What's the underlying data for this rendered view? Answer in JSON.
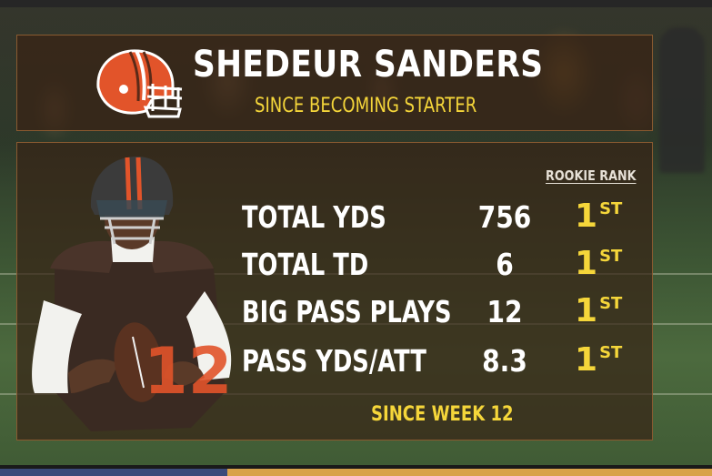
{
  "header": {
    "player_name": "SHEDEUR SANDERS",
    "subtitle": "SINCE BECOMING STARTER"
  },
  "stats": {
    "column_header": "ROOKIE RANK",
    "rows": [
      {
        "label": "TOTAL YDS",
        "value": "756",
        "rank": "1",
        "rank_suffix": "ST"
      },
      {
        "label": "TOTAL TD",
        "value": "6",
        "rank": "1",
        "rank_suffix": "ST"
      },
      {
        "label": "BIG PASS PLAYS",
        "value": "12",
        "rank": "1",
        "rank_suffix": "ST"
      },
      {
        "label": "PASS YDS/ATT",
        "value": "8.3",
        "rank": "1",
        "rank_suffix": "ST"
      }
    ],
    "footnote": "SINCE WEEK 12"
  },
  "player": {
    "jersey_number": "12"
  },
  "colors": {
    "panel_bg": "#382416",
    "accent_yellow": "#f5d63a",
    "helmet_orange": "#e2542a",
    "jersey_brown": "#3a2a22",
    "text_white": "#ffffff"
  }
}
